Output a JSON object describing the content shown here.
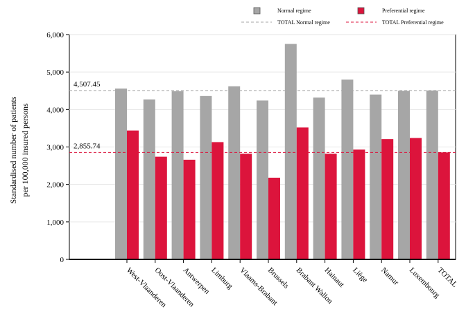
{
  "chart_data": {
    "type": "bar",
    "ylabel_lines": [
      "Standardised number of patients",
      "per 100,000 insured persons"
    ],
    "categories": [
      "West-Vlaanderen",
      "Oost-Vlaanderen",
      "Antwerpen",
      "Limburg",
      "Vlaams-Brabant",
      "Brussels",
      "Brabant Wallon",
      "Hainaut",
      "Liège",
      "Namur",
      "Luxembourg",
      "TOTAL"
    ],
    "series": [
      {
        "name": "Normal regime",
        "color": "#a6a6a6",
        "values": [
          4560,
          4270,
          4490,
          4360,
          4620,
          4240,
          5750,
          4320,
          4800,
          4400,
          4500,
          4507.45
        ]
      },
      {
        "name": "Preferential regime",
        "color": "#dc143c",
        "values": [
          3440,
          2740,
          2660,
          3130,
          2820,
          2180,
          3520,
          2820,
          2930,
          3210,
          3240,
          2855.74
        ]
      }
    ],
    "reference_lines": [
      {
        "name": "TOTAL Normal regime",
        "value": 4507.45,
        "label": "4,507.45",
        "color": "#a6a6a6"
      },
      {
        "name": "TOTAL Preferential regime",
        "value": 2855.74,
        "label": "2,855.74",
        "color": "#dc143c"
      }
    ],
    "yticks": [
      0,
      1000,
      2000,
      3000,
      4000,
      5000,
      6000
    ],
    "ytick_labels": [
      "0",
      "1,000",
      "2,000",
      "3,000",
      "4,000",
      "5,000",
      "6,000"
    ],
    "ylim": [
      0,
      6000
    ],
    "grid": true,
    "legend_position": "top"
  }
}
